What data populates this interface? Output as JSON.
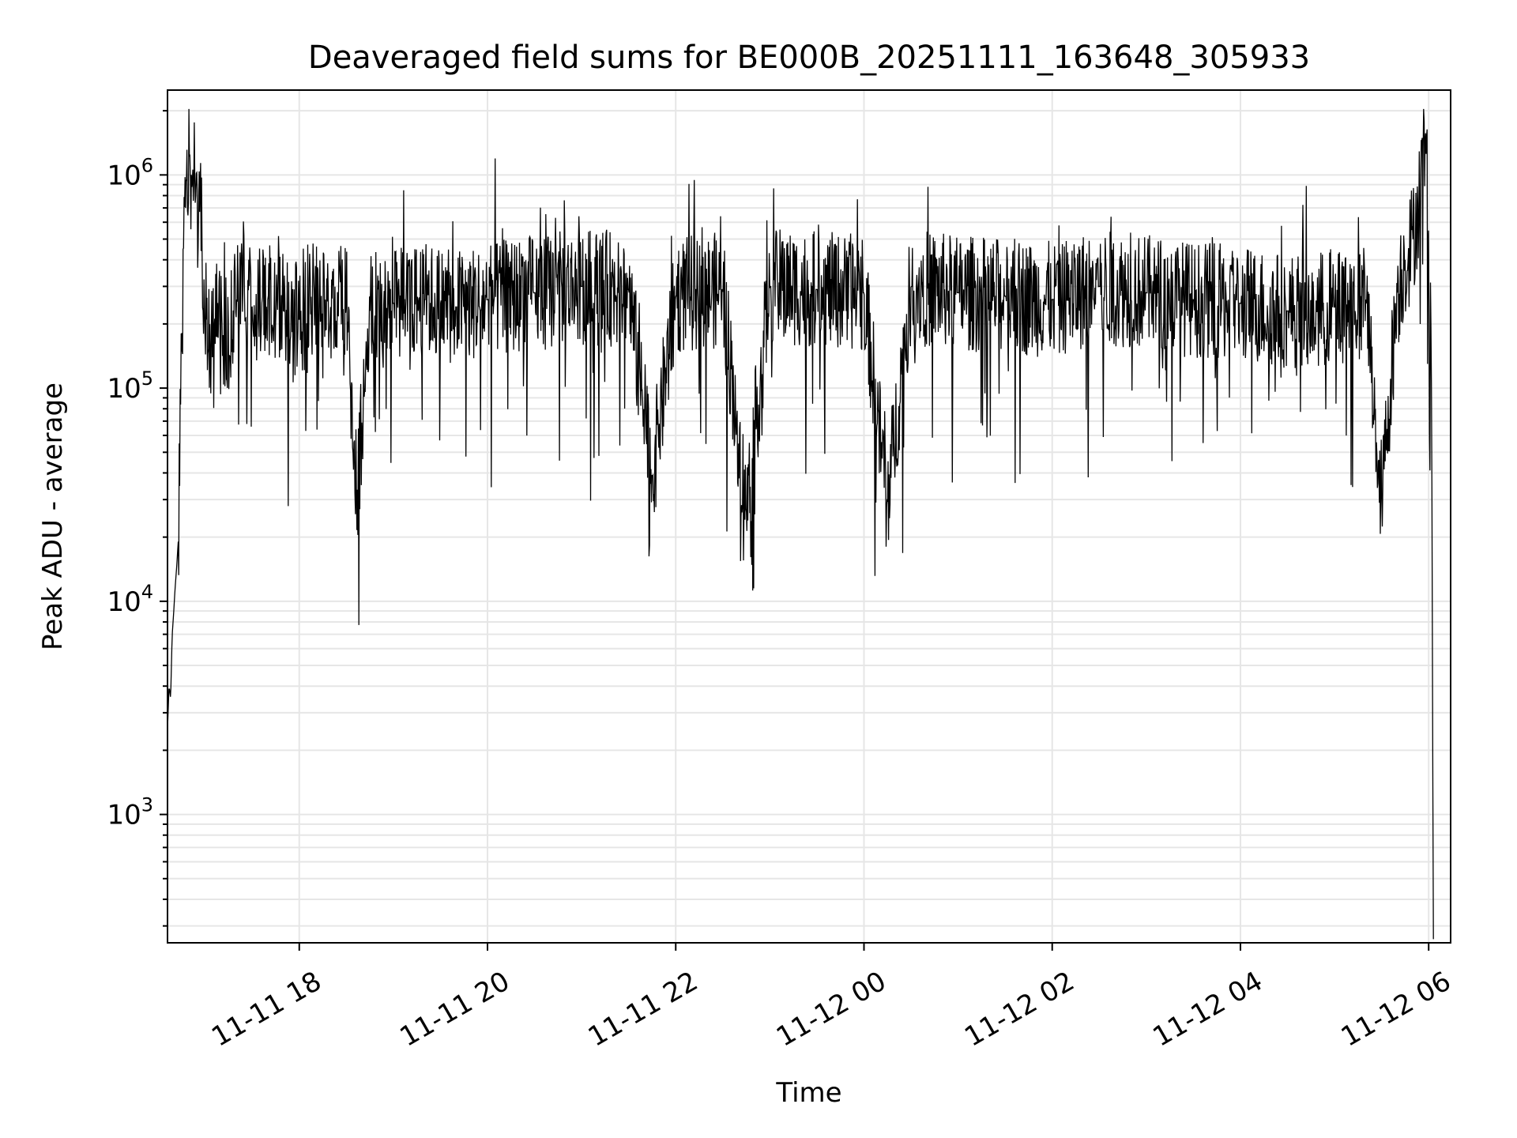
{
  "chart_data": {
    "type": "line",
    "title": "Deaveraged field sums for BE000B_20251111_163648_305933",
    "xlabel": "Time",
    "ylabel": "Peak ADU - average",
    "yscale": "log",
    "ylim": [
      250,
      2500000
    ],
    "xlim": [
      "2025-11-11 16:36",
      "2025-11-12 06:14"
    ],
    "grid": true,
    "x_ticks": [
      {
        "t": "2025-11-11 18:00",
        "label": "11-11 18"
      },
      {
        "t": "2025-11-11 20:00",
        "label": "11-11 20"
      },
      {
        "t": "2025-11-11 22:00",
        "label": "11-11 22"
      },
      {
        "t": "2025-11-12 00:00",
        "label": "11-12 00"
      },
      {
        "t": "2025-11-12 02:00",
        "label": "11-12 02"
      },
      {
        "t": "2025-11-12 04:00",
        "label": "11-12 04"
      },
      {
        "t": "2025-11-12 06:00",
        "label": "11-12 06"
      }
    ],
    "y_ticks": [
      {
        "value": 1000,
        "base": "10",
        "exp": "3"
      },
      {
        "value": 10000,
        "base": "10",
        "exp": "4"
      },
      {
        "value": 100000,
        "base": "10",
        "exp": "5"
      },
      {
        "value": 1000000,
        "base": "10",
        "exp": "6"
      }
    ],
    "line_color": "#000000",
    "grid_color": "#e6e6e6",
    "series": [
      {
        "x": [
          "2025-11-11 16:36",
          "2025-11-11 16:37",
          "2025-11-11 16:38",
          "2025-11-11 16:39",
          "2025-11-11 16:40",
          "2025-11-11 16:41",
          "2025-11-11 16:42",
          "2025-11-11 16:43",
          "2025-11-11 16:44",
          "2025-11-11 16:45",
          "2025-11-11 16:46",
          "2025-11-11 16:47",
          "2025-11-11 16:48",
          "2025-11-11 16:49",
          "2025-11-11 16:50",
          "2025-11-11 16:51",
          "2025-11-11 16:52",
          "2025-11-11 16:53",
          "2025-11-11 16:54",
          "2025-11-11 16:55",
          "2025-11-11 16:56",
          "2025-11-11 16:57",
          "2025-11-11 16:58",
          "2025-11-11 16:59",
          "2025-11-11 17:00",
          "2025-11-11 17:02",
          "2025-11-11 17:04",
          "2025-11-11 17:06",
          "2025-11-11 17:08",
          "2025-11-11 17:10",
          "2025-11-11 17:15",
          "2025-11-11 17:20",
          "2025-11-11 17:25",
          "2025-11-11 17:30",
          "2025-11-11 17:40",
          "2025-11-11 17:50",
          "2025-11-11 18:00",
          "2025-11-11 18:10",
          "2025-11-11 18:20",
          "2025-11-11 18:30",
          "2025-11-11 18:37",
          "2025-11-11 18:45",
          "2025-11-11 19:00",
          "2025-11-11 19:20",
          "2025-11-11 19:40",
          "2025-11-11 20:00",
          "2025-11-11 20:30",
          "2025-11-11 21:00",
          "2025-11-11 21:30",
          "2025-11-11 21:45",
          "2025-11-11 22:00",
          "2025-11-11 22:30",
          "2025-11-11 22:45",
          "2025-11-11 23:00",
          "2025-11-11 23:30",
          "2025-11-12 00:00",
          "2025-11-12 00:15",
          "2025-11-12 00:30",
          "2025-11-12 01:00",
          "2025-11-12 01:30",
          "2025-11-12 02:00",
          "2025-11-12 02:30",
          "2025-11-12 03:00",
          "2025-11-12 03:30",
          "2025-11-12 04:00",
          "2025-11-12 04:30",
          "2025-11-12 05:00",
          "2025-11-12 05:20",
          "2025-11-12 05:30",
          "2025-11-12 05:40",
          "2025-11-12 05:45",
          "2025-11-12 05:50",
          "2025-11-12 05:55",
          "2025-11-12 05:58",
          "2025-11-12 06:00",
          "2025-11-12 06:01",
          "2025-11-12 06:02",
          "2025-11-12 06:03"
        ],
        "values": [
          2500,
          4000,
          3500,
          7000,
          9000,
          12000,
          15000,
          20000,
          60000,
          180000,
          300000,
          800000,
          1000000,
          900000,
          1400000,
          700000,
          900000,
          1100000,
          800000,
          600000,
          500000,
          1300000,
          400000,
          300000,
          250000,
          200000,
          150000,
          300000,
          250000,
          200000,
          180000,
          260000,
          280000,
          240000,
          260000,
          230000,
          210000,
          260000,
          240000,
          250000,
          33000,
          230000,
          250000,
          260000,
          240000,
          260000,
          280000,
          300000,
          290000,
          38000,
          270000,
          290000,
          26000,
          300000,
          290000,
          280000,
          29000,
          300000,
          280000,
          270000,
          260000,
          300000,
          280000,
          260000,
          250000,
          230000,
          240000,
          260000,
          30000,
          280000,
          400000,
          500000,
          900000,
          1600000,
          500000,
          300000,
          50000,
          260
        ]
      }
    ],
    "noise_seed": 305933
  }
}
